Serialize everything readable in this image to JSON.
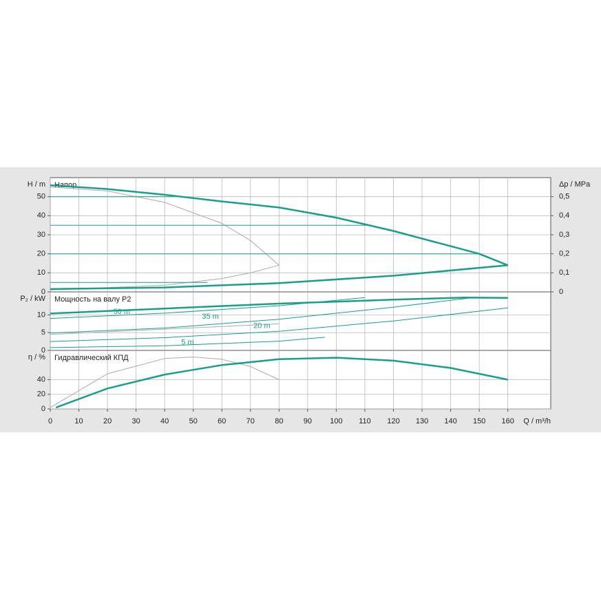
{
  "chart_data": [
    {
      "type": "line",
      "panel_label": "Напор",
      "ylabel": "H / m",
      "ylim": [
        0,
        60
      ],
      "yticks": [
        0,
        10,
        20,
        30,
        40,
        50
      ],
      "y2label": "Δp / MPa",
      "y2lim": [
        0,
        0.6
      ],
      "y2ticks": [
        0,
        {
          "value": 0.1,
          "label": "0,1"
        },
        {
          "value": 0.2,
          "label": "0,2"
        },
        {
          "value": 0.3,
          "label": "0,3"
        },
        {
          "value": 0.4,
          "label": "0,4"
        },
        {
          "value": 0.5,
          "label": "0,5"
        }
      ],
      "series": [
        {
          "color": "#aaaaaa",
          "width": 1,
          "x": [
            0,
            20,
            40,
            60,
            70,
            80
          ],
          "values": [
            55,
            53,
            47,
            36,
            27,
            14
          ]
        },
        {
          "color": "#aaaaaa",
          "width": 1,
          "x": [
            0,
            40,
            60,
            70,
            80
          ],
          "values": [
            1,
            3.5,
            7,
            10,
            14
          ]
        },
        {
          "color": "#1a9e8a",
          "width": 1,
          "x": [
            0,
            45
          ],
          "values": [
            50,
            50
          ]
        },
        {
          "color": "#1a9e8a",
          "width": 1,
          "x": [
            0,
            112
          ],
          "values": [
            35,
            35
          ]
        },
        {
          "color": "#1a9e8a",
          "width": 1,
          "x": [
            0,
            150
          ],
          "values": [
            20,
            20
          ]
        },
        {
          "color": "#1a9e8a",
          "width": 1,
          "x": [
            0,
            55
          ],
          "values": [
            5,
            5
          ]
        },
        {
          "color": "#1a9e8a",
          "width": 2.5,
          "x": [
            0,
            20,
            40,
            60,
            80,
            100,
            120,
            140,
            150,
            160
          ],
          "values": [
            56,
            54,
            51,
            47.5,
            44.3,
            39,
            32,
            24,
            20,
            14
          ]
        },
        {
          "color": "#1a9e8a",
          "width": 2.5,
          "x": [
            0,
            40,
            80,
            120,
            160
          ],
          "values": [
            1.5,
            2.3,
            4.6,
            8.5,
            14
          ]
        }
      ]
    },
    {
      "type": "line",
      "panel_label": "Мощность на валу P2",
      "ylabel": "P₂ / kW",
      "ylim": [
        0,
        16.5
      ],
      "yticks": [
        0,
        5,
        10
      ],
      "series": [
        {
          "color": "#aaaaaa",
          "width": 1,
          "x": [
            0,
            40,
            80
          ],
          "values": [
            4.5,
            6,
            7.5
          ]
        },
        {
          "color": "#1a9e8a",
          "width": 1,
          "x": [
            0,
            40,
            80,
            110
          ],
          "values": [
            9,
            10.5,
            12.6,
            14.9
          ]
        },
        {
          "color": "#1a9e8a",
          "width": 1,
          "x": [
            0,
            40,
            80,
            120,
            148
          ],
          "values": [
            4.9,
            6.3,
            8.8,
            12.2,
            14.9
          ]
        },
        {
          "color": "#1a9e8a",
          "width": 1,
          "x": [
            0,
            40,
            80,
            120,
            160
          ],
          "values": [
            2.5,
            3.6,
            5.4,
            8.3,
            12
          ]
        },
        {
          "color": "#1a9e8a",
          "width": 1,
          "x": [
            0,
            40,
            80,
            96
          ],
          "values": [
            0.8,
            1.3,
            2.6,
            3.7
          ]
        },
        {
          "color": "#1a9e8a",
          "width": 2.5,
          "x": [
            0,
            40,
            80,
            120,
            145,
            160
          ],
          "values": [
            10.4,
            11.8,
            13.2,
            14.3,
            14.9,
            14.8
          ]
        }
      ],
      "annotations": [
        {
          "text": "50 m",
          "x": 25,
          "y": 10.9,
          "color": "#1a9e8a"
        },
        {
          "text": "35 m",
          "x": 56,
          "y": 9.5,
          "color": "#1a9e8a"
        },
        {
          "text": "20 m",
          "x": 74,
          "y": 6.9,
          "color": "#1a9e8a"
        },
        {
          "text": "5 m",
          "x": 48,
          "y": 2.2,
          "color": "#1a9e8a"
        }
      ]
    },
    {
      "type": "line",
      "panel_label": "Гидравлический КПД",
      "ylabel": "η / %",
      "ylim": [
        0,
        80
      ],
      "yticks": [
        0,
        20,
        40
      ],
      "xlabel": "Q / m³/h",
      "xlim": [
        0,
        175
      ],
      "xticks": [
        0,
        10,
        20,
        30,
        40,
        50,
        60,
        70,
        80,
        90,
        100,
        110,
        120,
        130,
        140,
        150,
        160
      ],
      "series": [
        {
          "color": "#aaaaaa",
          "width": 1,
          "x": [
            0,
            20,
            40,
            50,
            60,
            70,
            80
          ],
          "values": [
            2,
            48,
            69,
            71,
            68,
            58,
            40
          ]
        },
        {
          "color": "#1a9e8a",
          "width": 2.5,
          "x": [
            2,
            20,
            40,
            60,
            80,
            100,
            120,
            140,
            160
          ],
          "values": [
            2,
            28,
            47,
            60,
            68,
            70,
            66,
            56,
            40
          ]
        }
      ]
    }
  ]
}
